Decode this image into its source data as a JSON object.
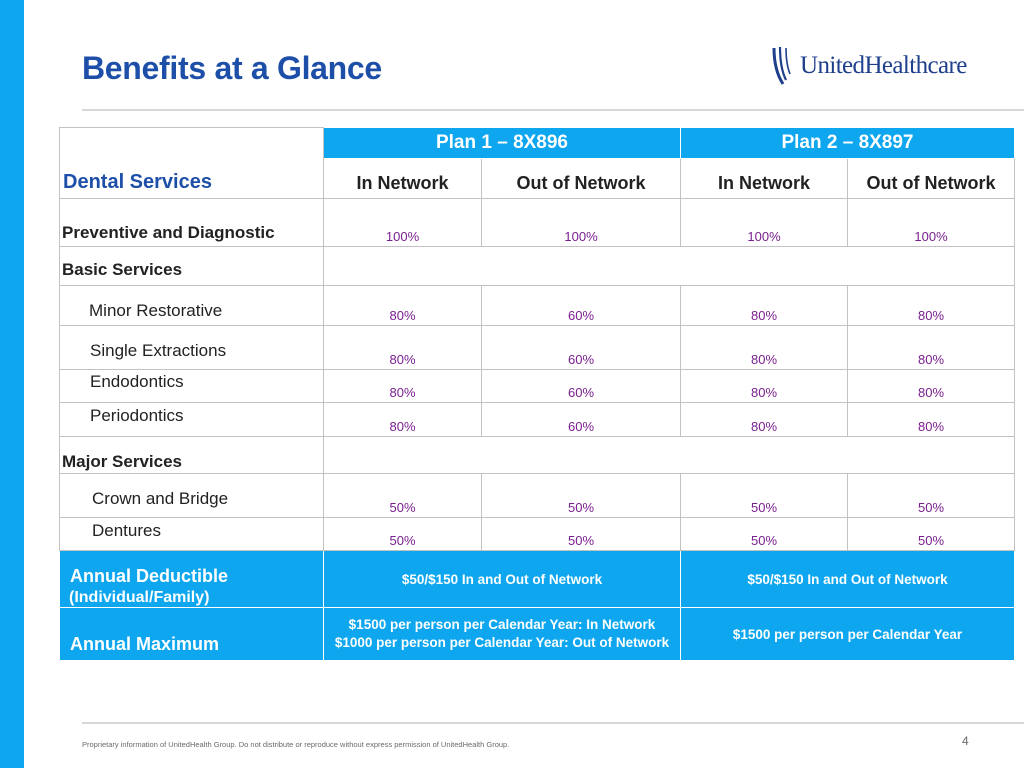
{
  "header": {
    "title": "Benefits at a Glance",
    "logo_text": "UnitedHealthcare",
    "colors": {
      "accent": "#0da6ef",
      "title": "#1d4fa8",
      "percent": "#7a1f8f"
    }
  },
  "table": {
    "plan1": "Plan 1 – 8X896",
    "plan2": "Plan 2 – 8X897",
    "dental_services": "Dental Services",
    "in_network": "In Network",
    "out_of_network": "Out of Network",
    "rows": {
      "preventive": {
        "label": "Preventive and Diagnostic",
        "values": [
          "100%",
          "100%",
          "100%",
          "100%"
        ]
      },
      "basic": {
        "label": "Basic Services"
      },
      "minor": {
        "label": "Minor Restorative",
        "values": [
          "80%",
          "60%",
          "80%",
          "80%"
        ]
      },
      "extractions": {
        "label": "Single Extractions",
        "values": [
          "80%",
          "60%",
          "80%",
          "80%"
        ]
      },
      "endodontics": {
        "label": "Endodontics",
        "values": [
          "80%",
          "60%",
          "80%",
          "80%"
        ]
      },
      "periodontics": {
        "label": "Periodontics",
        "values": [
          "80%",
          "60%",
          "80%",
          "80%"
        ]
      },
      "major": {
        "label": "Major Services"
      },
      "crown": {
        "label": "Crown and Bridge",
        "values": [
          "50%",
          "50%",
          "50%",
          "50%"
        ]
      },
      "dentures": {
        "label": "Dentures",
        "values": [
          "50%",
          "50%",
          "50%",
          "50%"
        ]
      }
    },
    "deductible": {
      "label": "Annual Deductible",
      "sublabel": "(Individual/Family)",
      "plan1": "$50/$150 In and Out of  Network",
      "plan2": "$50/$150 In and Out of  Network"
    },
    "maximum": {
      "label": "Annual Maximum",
      "plan1_line1": "$1500 per person per Calendar Year: In Network",
      "plan1_line2": "$1000 per person per Calendar Year: Out of Network",
      "plan2": "$1500 per person per Calendar Year"
    }
  },
  "footer": {
    "text": "Proprietary information of UnitedHealth Group. Do not distribute or reproduce without express permission of UnitedHealth Group.",
    "page_number": "4"
  }
}
